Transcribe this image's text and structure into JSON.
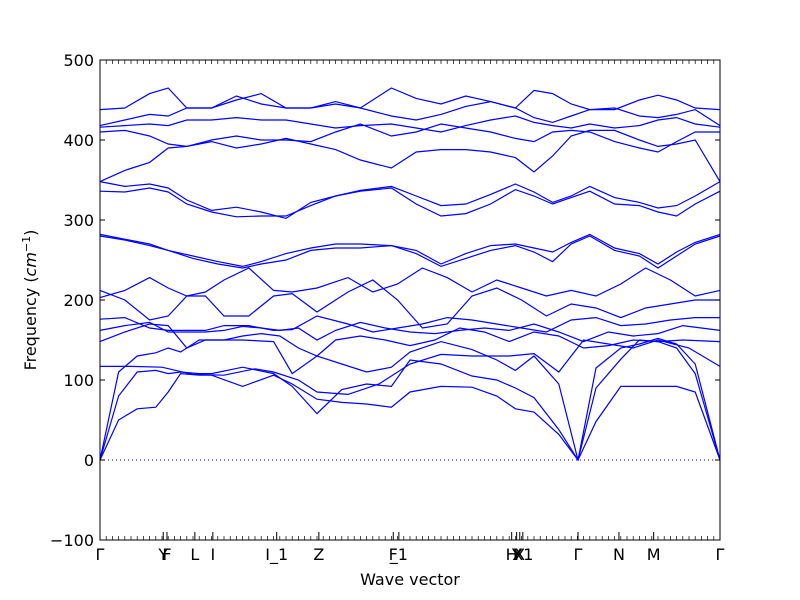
{
  "chart_data": {
    "type": "line",
    "title": "",
    "xlabel": "Wave vector",
    "ylabel": "Frequency",
    "ylabel_unit": "cm",
    "ylabel_unit_exp": "−1",
    "ylim": [
      -100,
      500
    ],
    "yticks": [
      -100,
      0,
      100,
      200,
      300,
      400,
      500
    ],
    "yticklabels": [
      "−100",
      "0",
      "100",
      "200",
      "300",
      "400",
      "500"
    ],
    "xlim": [
      0,
      1
    ],
    "grid": false,
    "legend": "none",
    "line_color": "#0000ff",
    "zero_line": {
      "y": 0,
      "style": "dotted",
      "color": "#0000ff"
    },
    "high_symmetry_points": [
      {
        "label": "Γ",
        "x": 0.0
      },
      {
        "label": "Y",
        "x": 0.102
      },
      {
        "label": "F",
        "x": 0.108
      },
      {
        "label": "L",
        "x": 0.153
      },
      {
        "label": "I",
        "x": 0.182
      },
      {
        "label": "I_1",
        "x": 0.285
      },
      {
        "label": "Z",
        "x": 0.353
      },
      {
        "label": "F",
        "x": 0.473
      },
      {
        "label": "_1",
        "x": 0.482
      },
      {
        "label": "H",
        "x": 0.664
      },
      {
        "label": "Y",
        "x": 0.672
      },
      {
        "label": "X",
        "x": 0.677
      },
      {
        "label": "X1",
        "x": 0.682
      },
      {
        "label": "Γ",
        "x": 0.771
      },
      {
        "label": "N",
        "x": 0.837
      },
      {
        "label": "M",
        "x": 0.893
      },
      {
        "label": "Γ",
        "x": 1.0
      }
    ],
    "series": [
      {
        "x": [
          0,
          0.03,
          0.06,
          0.09,
          0.11,
          0.13,
          0.16,
          0.18,
          0.23,
          0.28,
          0.31,
          0.35,
          0.39,
          0.43,
          0.47,
          0.5,
          0.55,
          0.6,
          0.64,
          0.67,
          0.7,
          0.74,
          0.771,
          0.8,
          0.84,
          0.87,
          0.9,
          0.93,
          0.96,
          1.0
        ],
        "values": [
          0,
          50,
          64,
          66,
          85,
          108,
          106,
          106,
          92,
          106,
          95,
          76,
          72,
          70,
          66,
          85,
          92,
          91,
          80,
          64,
          60,
          32,
          0,
          48,
          92,
          92,
          92,
          92,
          85,
          0
        ]
      },
      {
        "x": [
          0,
          0.03,
          0.06,
          0.09,
          0.11,
          0.13,
          0.16,
          0.18,
          0.23,
          0.28,
          0.31,
          0.35,
          0.39,
          0.43,
          0.47,
          0.5,
          0.55,
          0.6,
          0.64,
          0.67,
          0.7,
          0.74,
          0.771,
          0.8,
          0.84,
          0.87,
          0.9,
          0.93,
          0.96,
          1.0
        ],
        "values": [
          0,
          80,
          110,
          112,
          108,
          110,
          108,
          108,
          116,
          108,
          92,
          58,
          88,
          95,
          92,
          125,
          120,
          105,
          100,
          90,
          78,
          38,
          0,
          90,
          126,
          150,
          148,
          140,
          108,
          0
        ]
      },
      {
        "x": [
          0,
          0.03,
          0.06,
          0.09,
          0.11,
          0.13,
          0.16,
          0.18,
          0.23,
          0.28,
          0.31,
          0.35,
          0.39,
          0.43,
          0.47,
          0.5,
          0.55,
          0.6,
          0.64,
          0.67,
          0.7,
          0.74,
          0.771,
          0.8,
          0.84,
          0.87,
          0.9,
          0.93,
          0.96,
          1.0
        ],
        "values": [
          0,
          110,
          130,
          134,
          140,
          135,
          150,
          150,
          150,
          148,
          108,
          130,
          120,
          110,
          116,
          135,
          148,
          138,
          125,
          112,
          130,
          95,
          0,
          115,
          140,
          145,
          152,
          145,
          120,
          0
        ]
      },
      {
        "x": [
          0,
          0.05,
          0.1,
          0.15,
          0.2,
          0.25,
          0.28,
          0.32,
          0.35,
          0.4,
          0.45,
          0.5,
          0.55,
          0.6,
          0.66,
          0.7,
          0.74,
          0.78,
          0.82,
          0.86,
          0.9,
          0.95,
          1.0
        ],
        "values": [
          117,
          117,
          116,
          107,
          106,
          114,
          110,
          100,
          85,
          82,
          95,
          120,
          132,
          130,
          130,
          133,
          110,
          150,
          145,
          140,
          150,
          140,
          117
        ]
      },
      {
        "x": [
          0,
          0.04,
          0.08,
          0.11,
          0.14,
          0.17,
          0.2,
          0.23,
          0.26,
          0.29,
          0.32,
          0.35,
          0.38,
          0.42,
          0.46,
          0.5,
          0.54,
          0.58,
          0.62,
          0.66,
          0.7,
          0.74,
          0.78,
          0.82,
          0.86,
          0.9,
          0.94,
          1.0
        ],
        "values": [
          148,
          160,
          170,
          168,
          140,
          150,
          150,
          155,
          158,
          155,
          140,
          130,
          150,
          155,
          150,
          143,
          150,
          165,
          160,
          148,
          160,
          155,
          140,
          143,
          150,
          148,
          150,
          148
        ]
      },
      {
        "x": [
          0,
          0.04,
          0.08,
          0.11,
          0.14,
          0.17,
          0.2,
          0.23,
          0.26,
          0.29,
          0.32,
          0.35,
          0.38,
          0.42,
          0.46,
          0.5,
          0.54,
          0.58,
          0.62,
          0.66,
          0.7,
          0.74,
          0.78,
          0.82,
          0.86,
          0.9,
          0.94,
          1.0
        ],
        "values": [
          162,
          168,
          172,
          160,
          160,
          160,
          162,
          167,
          165,
          162,
          165,
          150,
          162,
          172,
          165,
          160,
          158,
          162,
          165,
          162,
          170,
          160,
          148,
          160,
          155,
          158,
          168,
          162
        ]
      },
      {
        "x": [
          0,
          0.04,
          0.08,
          0.11,
          0.14,
          0.17,
          0.2,
          0.24,
          0.28,
          0.31,
          0.35,
          0.4,
          0.44,
          0.48,
          0.52,
          0.56,
          0.6,
          0.64,
          0.68,
          0.72,
          0.76,
          0.8,
          0.84,
          0.88,
          0.92,
          0.96,
          1.0
        ],
        "values": [
          176,
          178,
          165,
          162,
          162,
          162,
          168,
          168,
          162,
          163,
          180,
          170,
          160,
          165,
          170,
          178,
          175,
          170,
          165,
          160,
          175,
          178,
          168,
          170,
          175,
          178,
          178
        ]
      },
      {
        "x": [
          0,
          0.04,
          0.08,
          0.11,
          0.14,
          0.17,
          0.2,
          0.24,
          0.28,
          0.31,
          0.35,
          0.4,
          0.44,
          0.48,
          0.52,
          0.56,
          0.6,
          0.64,
          0.68,
          0.72,
          0.76,
          0.8,
          0.84,
          0.88,
          0.92,
          0.96,
          1.0
        ],
        "values": [
          212,
          200,
          175,
          180,
          205,
          205,
          180,
          180,
          205,
          208,
          185,
          210,
          225,
          200,
          165,
          170,
          205,
          215,
          200,
          180,
          195,
          190,
          178,
          190,
          195,
          200,
          200
        ]
      },
      {
        "x": [
          0,
          0.04,
          0.08,
          0.11,
          0.14,
          0.17,
          0.2,
          0.24,
          0.28,
          0.31,
          0.35,
          0.4,
          0.44,
          0.48,
          0.52,
          0.56,
          0.6,
          0.64,
          0.68,
          0.72,
          0.76,
          0.8,
          0.84,
          0.88,
          0.92,
          0.96,
          1.0
        ],
        "values": [
          203,
          212,
          228,
          215,
          205,
          210,
          225,
          240,
          212,
          210,
          215,
          228,
          210,
          220,
          240,
          228,
          210,
          225,
          215,
          205,
          212,
          205,
          220,
          240,
          225,
          205,
          212
        ]
      },
      {
        "x": [
          0,
          0.04,
          0.08,
          0.11,
          0.15,
          0.19,
          0.23,
          0.26,
          0.3,
          0.34,
          0.38,
          0.42,
          0.47,
          0.51,
          0.55,
          0.59,
          0.63,
          0.67,
          0.7,
          0.73,
          0.76,
          0.79,
          0.83,
          0.87,
          0.9,
          0.93,
          0.96,
          1.0
        ],
        "values": [
          280,
          275,
          268,
          262,
          252,
          245,
          240,
          245,
          250,
          262,
          265,
          265,
          268,
          258,
          242,
          252,
          262,
          268,
          260,
          248,
          270,
          280,
          262,
          255,
          240,
          255,
          270,
          280
        ]
      },
      {
        "x": [
          0,
          0.04,
          0.08,
          0.11,
          0.15,
          0.19,
          0.23,
          0.26,
          0.3,
          0.34,
          0.38,
          0.42,
          0.47,
          0.51,
          0.55,
          0.59,
          0.63,
          0.67,
          0.7,
          0.73,
          0.76,
          0.79,
          0.83,
          0.87,
          0.9,
          0.93,
          0.96,
          1.0
        ],
        "values": [
          282,
          276,
          270,
          262,
          255,
          248,
          242,
          248,
          258,
          265,
          270,
          270,
          268,
          262,
          245,
          258,
          268,
          270,
          265,
          260,
          272,
          282,
          265,
          258,
          245,
          260,
          272,
          282
        ]
      },
      {
        "x": [
          0,
          0.04,
          0.08,
          0.11,
          0.14,
          0.18,
          0.22,
          0.26,
          0.3,
          0.34,
          0.38,
          0.42,
          0.47,
          0.51,
          0.55,
          0.59,
          0.63,
          0.67,
          0.7,
          0.73,
          0.76,
          0.79,
          0.83,
          0.87,
          0.9,
          0.93,
          0.96,
          1.0
        ],
        "values": [
          336,
          335,
          340,
          335,
          320,
          310,
          304,
          305,
          305,
          318,
          330,
          336,
          340,
          320,
          305,
          308,
          320,
          338,
          330,
          320,
          328,
          336,
          320,
          318,
          310,
          305,
          320,
          336
        ]
      },
      {
        "x": [
          0,
          0.04,
          0.08,
          0.11,
          0.14,
          0.18,
          0.22,
          0.26,
          0.3,
          0.34,
          0.38,
          0.42,
          0.47,
          0.51,
          0.55,
          0.59,
          0.63,
          0.67,
          0.7,
          0.73,
          0.76,
          0.79,
          0.83,
          0.87,
          0.9,
          0.93,
          0.96,
          1.0
        ],
        "values": [
          348,
          342,
          345,
          340,
          325,
          312,
          316,
          310,
          302,
          322,
          330,
          337,
          342,
          330,
          318,
          320,
          332,
          345,
          335,
          322,
          330,
          342,
          328,
          322,
          315,
          318,
          330,
          348
        ]
      },
      {
        "x": [
          0,
          0.04,
          0.08,
          0.11,
          0.14,
          0.18,
          0.22,
          0.26,
          0.3,
          0.34,
          0.38,
          0.42,
          0.47,
          0.51,
          0.55,
          0.59,
          0.63,
          0.67,
          0.7,
          0.73,
          0.76,
          0.79,
          0.83,
          0.87,
          0.9,
          0.93,
          0.96,
          1.0
        ],
        "values": [
          348,
          362,
          372,
          390,
          392,
          398,
          390,
          395,
          402,
          395,
          388,
          375,
          365,
          385,
          388,
          388,
          385,
          378,
          360,
          380,
          405,
          412,
          412,
          400,
          392,
          395,
          400,
          348
        ]
      },
      {
        "x": [
          0,
          0.04,
          0.08,
          0.11,
          0.14,
          0.18,
          0.22,
          0.26,
          0.3,
          0.34,
          0.38,
          0.42,
          0.47,
          0.51,
          0.55,
          0.59,
          0.63,
          0.67,
          0.7,
          0.73,
          0.76,
          0.79,
          0.83,
          0.87,
          0.9,
          0.93,
          0.96,
          1.0
        ],
        "values": [
          410,
          412,
          405,
          395,
          392,
          400,
          405,
          400,
          400,
          398,
          410,
          420,
          405,
          410,
          420,
          415,
          410,
          402,
          398,
          410,
          412,
          410,
          398,
          390,
          385,
          398,
          410,
          410
        ]
      },
      {
        "x": [
          0,
          0.04,
          0.08,
          0.11,
          0.14,
          0.18,
          0.22,
          0.26,
          0.3,
          0.34,
          0.38,
          0.42,
          0.47,
          0.51,
          0.55,
          0.59,
          0.63,
          0.67,
          0.7,
          0.73,
          0.76,
          0.79,
          0.83,
          0.87,
          0.9,
          0.93,
          0.96,
          1.0
        ],
        "values": [
          416,
          418,
          420,
          418,
          425,
          425,
          428,
          425,
          425,
          420,
          415,
          418,
          420,
          415,
          410,
          418,
          425,
          430,
          422,
          418,
          415,
          420,
          415,
          418,
          425,
          428,
          420,
          416
        ]
      },
      {
        "x": [
          0,
          0.04,
          0.08,
          0.11,
          0.14,
          0.18,
          0.22,
          0.26,
          0.3,
          0.34,
          0.38,
          0.42,
          0.47,
          0.51,
          0.55,
          0.59,
          0.63,
          0.67,
          0.7,
          0.73,
          0.76,
          0.79,
          0.83,
          0.87,
          0.9,
          0.93,
          0.96,
          1.0
        ],
        "values": [
          418,
          425,
          432,
          430,
          440,
          440,
          455,
          445,
          440,
          440,
          445,
          440,
          430,
          425,
          432,
          442,
          448,
          440,
          428,
          422,
          430,
          438,
          440,
          430,
          428,
          432,
          438,
          418
        ]
      },
      {
        "x": [
          0,
          0.04,
          0.08,
          0.11,
          0.14,
          0.18,
          0.22,
          0.26,
          0.3,
          0.34,
          0.38,
          0.42,
          0.47,
          0.51,
          0.55,
          0.59,
          0.63,
          0.67,
          0.7,
          0.73,
          0.76,
          0.79,
          0.83,
          0.87,
          0.9,
          0.93,
          0.96,
          1.0
        ],
        "values": [
          438,
          440,
          458,
          465,
          440,
          440,
          450,
          458,
          440,
          440,
          448,
          440,
          465,
          452,
          445,
          455,
          448,
          440,
          462,
          458,
          445,
          438,
          438,
          450,
          456,
          450,
          440,
          438
        ]
      }
    ]
  }
}
